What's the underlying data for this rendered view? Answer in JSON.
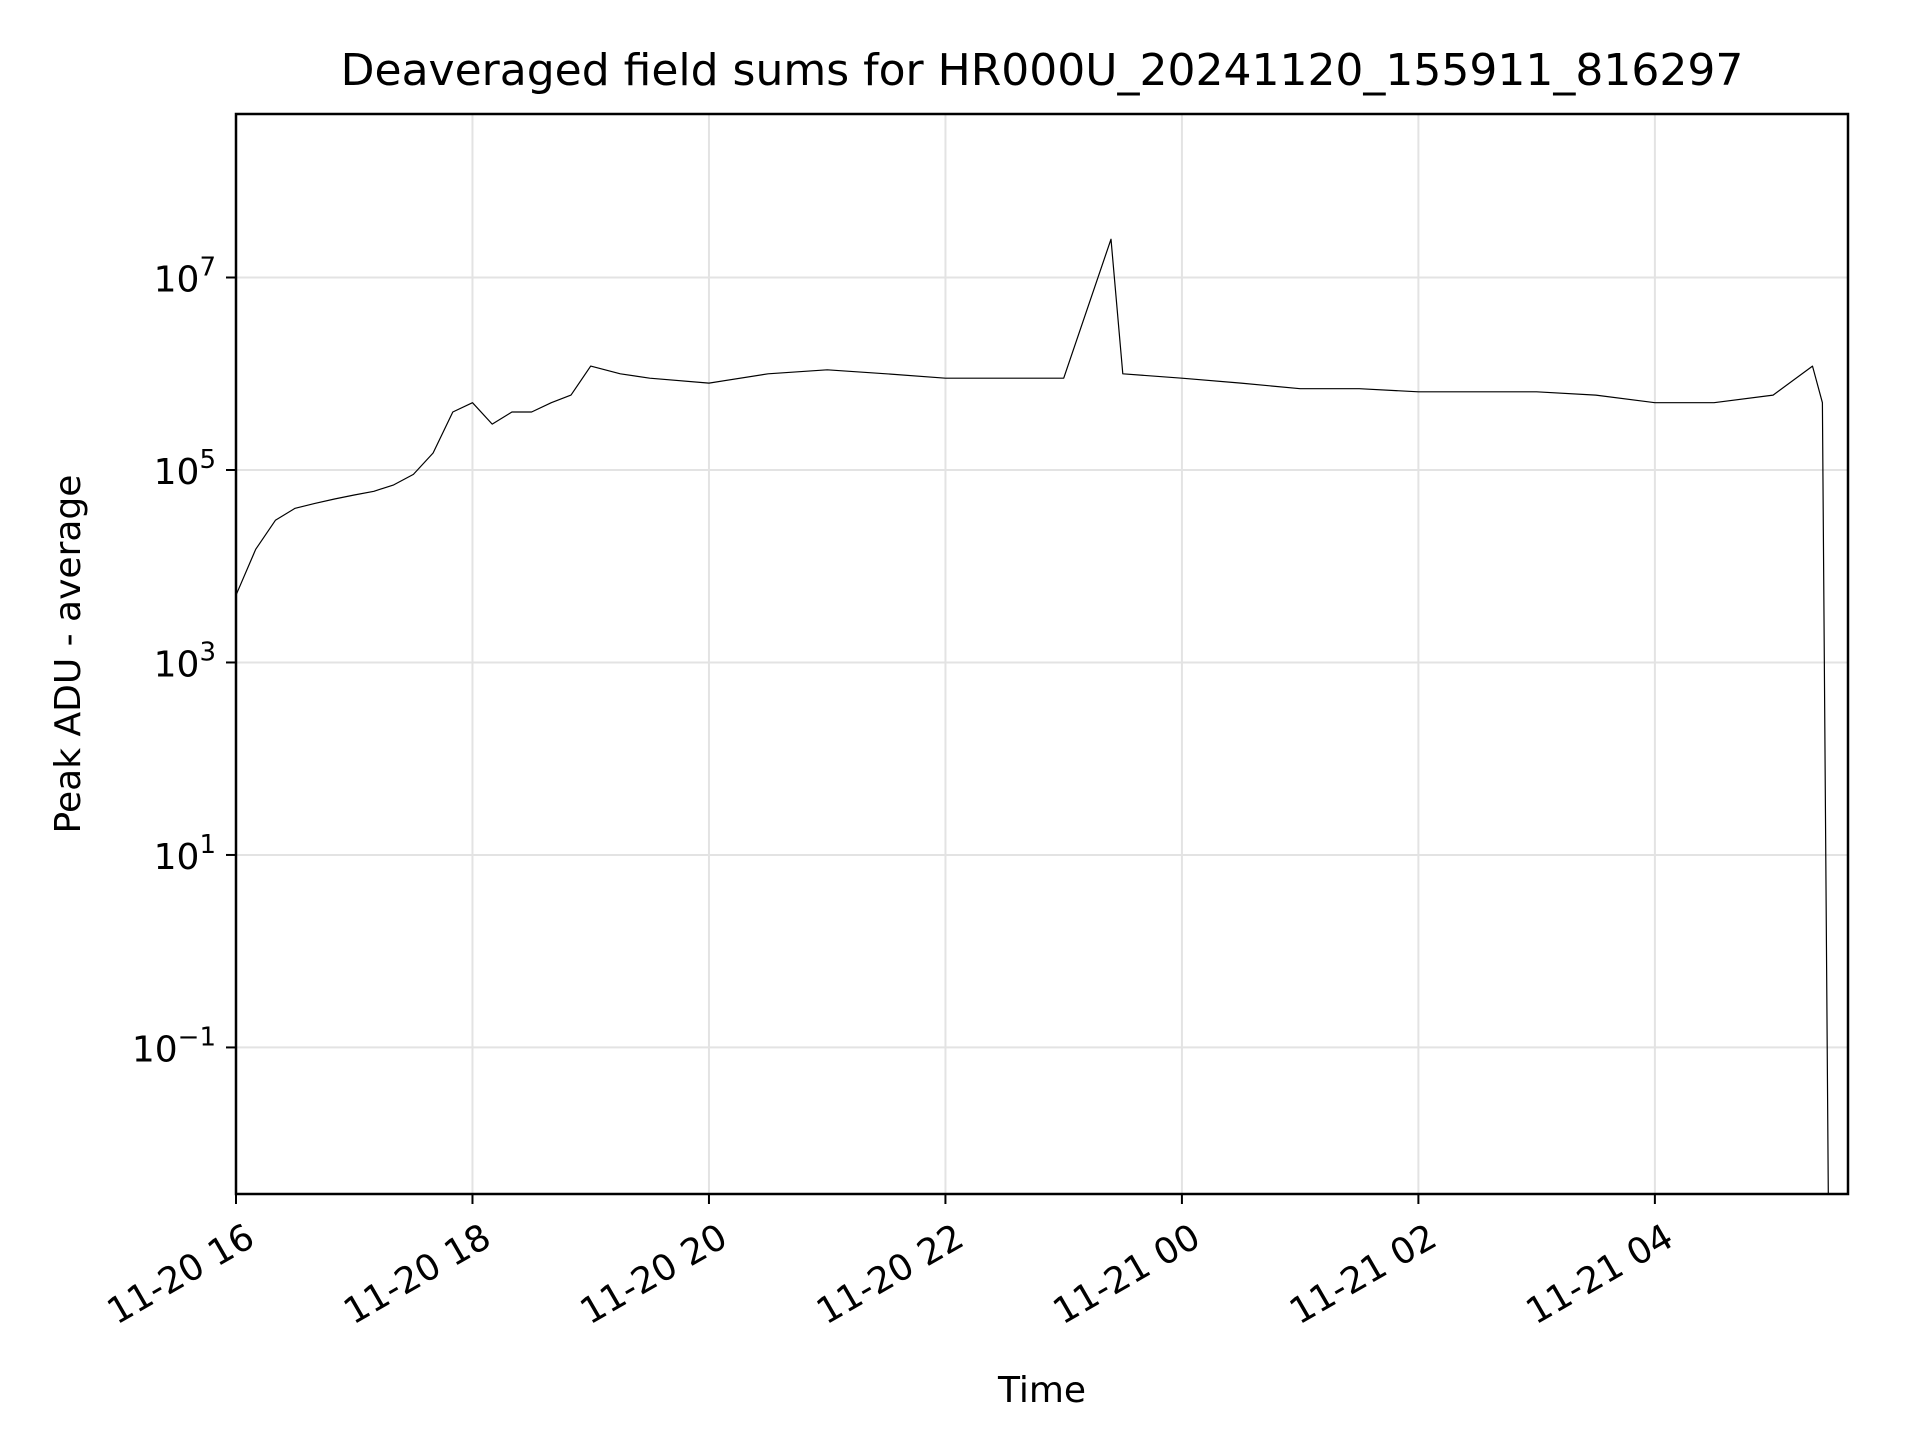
{
  "chart_data": {
    "type": "line",
    "title": "Deaveraged field sums for HR000U_20241120_155911_816297",
    "xlabel": "Time",
    "ylabel": "Peak ADU - average",
    "xscale": "time",
    "yscale": "log",
    "xlim": [
      "2024-11-20 16:00",
      "2024-11-21 05:38"
    ],
    "ylim": [
      0.003,
      500000000
    ],
    "x_ticks": [
      "2024-11-20 16:00",
      "2024-11-20 18:00",
      "2024-11-20 20:00",
      "2024-11-20 22:00",
      "2024-11-21 00:00",
      "2024-11-21 02:00",
      "2024-11-21 04:00"
    ],
    "x_tick_labels": [
      "11-20 16",
      "11-20 18",
      "11-20 20",
      "11-20 22",
      "11-21 00",
      "11-21 02",
      "11-21 04"
    ],
    "y_ticks": [
      0.1,
      10,
      1000,
      100000,
      10000000
    ],
    "y_tick_labels": [
      {
        "base": "10",
        "exp": "−1"
      },
      {
        "base": "10",
        "exp": "1"
      },
      {
        "base": "10",
        "exp": "3"
      },
      {
        "base": "10",
        "exp": "5"
      },
      {
        "base": "10",
        "exp": "7"
      }
    ],
    "grid": true,
    "legend": "none",
    "series": [
      {
        "color": "#000000",
        "x": [
          "2024-11-20 16:00",
          "2024-11-20 16:10",
          "2024-11-20 16:20",
          "2024-11-20 16:30",
          "2024-11-20 16:40",
          "2024-11-20 16:50",
          "2024-11-20 17:00",
          "2024-11-20 17:10",
          "2024-11-20 17:20",
          "2024-11-20 17:30",
          "2024-11-20 17:40",
          "2024-11-20 17:50",
          "2024-11-20 18:00",
          "2024-11-20 18:10",
          "2024-11-20 18:20",
          "2024-11-20 18:30",
          "2024-11-20 18:40",
          "2024-11-20 18:50",
          "2024-11-20 19:00",
          "2024-11-20 19:15",
          "2024-11-20 19:30",
          "2024-11-20 20:00",
          "2024-11-20 20:30",
          "2024-11-20 21:00",
          "2024-11-20 21:30",
          "2024-11-20 22:00",
          "2024-11-20 22:30",
          "2024-11-20 23:00",
          "2024-11-20 23:24",
          "2024-11-20 23:30",
          "2024-11-21 00:00",
          "2024-11-21 00:30",
          "2024-11-21 01:00",
          "2024-11-21 01:30",
          "2024-11-21 02:00",
          "2024-11-21 02:30",
          "2024-11-21 03:00",
          "2024-11-21 03:30",
          "2024-11-21 04:00",
          "2024-11-21 04:30",
          "2024-11-21 05:00",
          "2024-11-21 05:20",
          "2024-11-21 05:25",
          "2024-11-21 05:28"
        ],
        "y": [
          5000,
          15000,
          30000,
          40000,
          45000,
          50000,
          55000,
          60000,
          70000,
          90000,
          150000,
          400000,
          500000,
          300000,
          400000,
          400000,
          500000,
          600000,
          1200000,
          1000000,
          900000,
          800000,
          1000000,
          1100000,
          1000000,
          900000,
          900000,
          900000,
          25000000,
          1000000,
          900000,
          800000,
          700000,
          700000,
          650000,
          650000,
          650000,
          600000,
          500000,
          500000,
          600000,
          1200000,
          500000,
          0.003
        ]
      }
    ]
  }
}
